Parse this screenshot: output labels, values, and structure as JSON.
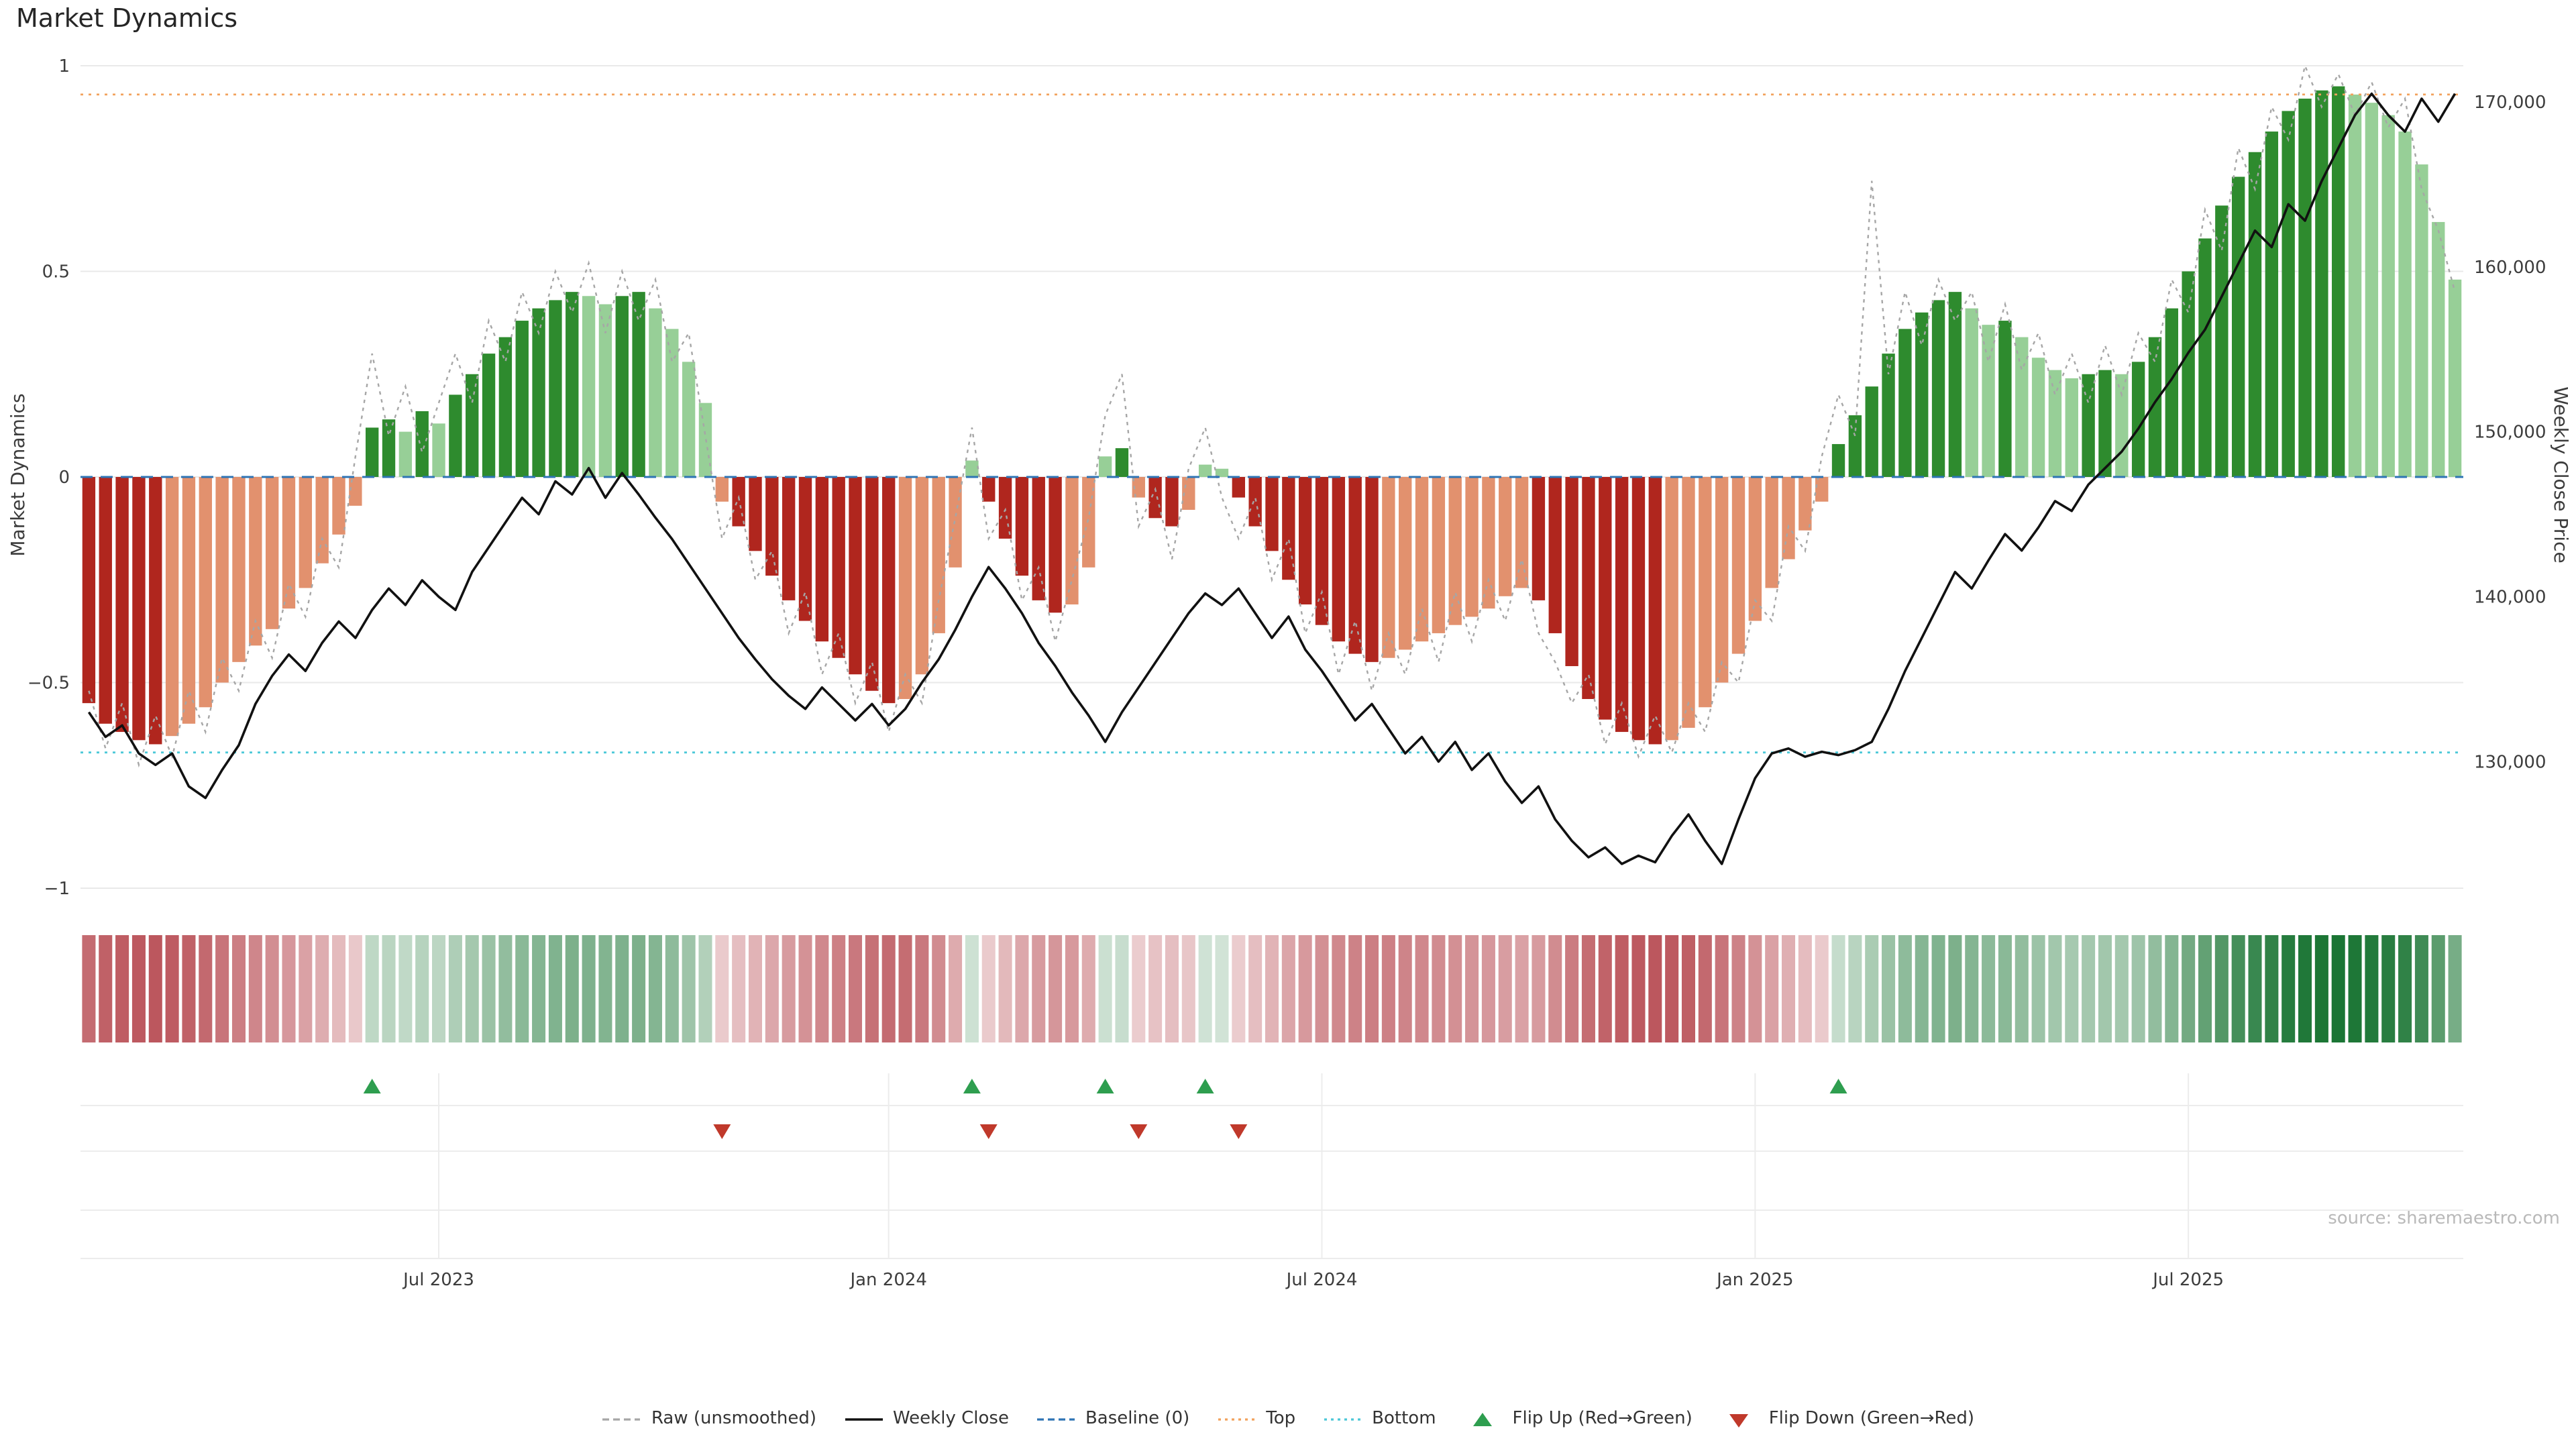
{
  "title": "Market Dynamics",
  "source": "source: sharemaestro.com",
  "axes": {
    "left_label": "Market Dynamics",
    "right_label": "Weekly Close Price",
    "left_ticks": [
      {
        "label": "1",
        "value": 1
      },
      {
        "label": "0.5",
        "value": 0.5
      },
      {
        "label": "0",
        "value": 0
      },
      {
        "label": "−0.5",
        "value": -0.5
      },
      {
        "label": "−1",
        "value": -1
      }
    ],
    "right_ticks": [
      {
        "label": "170,000",
        "value": 170000
      },
      {
        "label": "160,000",
        "value": 160000
      },
      {
        "label": "150,000",
        "value": 150000
      },
      {
        "label": "140,000",
        "value": 140000
      },
      {
        "label": "130,000",
        "value": 130000
      }
    ],
    "x_ticks": [
      {
        "label": "Jul 2023",
        "week": 21
      },
      {
        "label": "Jan 2024",
        "week": 48
      },
      {
        "label": "Jul 2024",
        "week": 74
      },
      {
        "label": "Jan 2025",
        "week": 100
      },
      {
        "label": "Jul 2025",
        "week": 126
      }
    ]
  },
  "legend": [
    {
      "label": "Raw (unsmoothed)",
      "type": "dashed-line",
      "color": "#a6a6a6"
    },
    {
      "label": "Weekly Close",
      "type": "solid-line",
      "color": "#111111"
    },
    {
      "label": "Baseline (0)",
      "type": "dashed-line",
      "color": "#2e74b5"
    },
    {
      "label": "Top",
      "type": "dotted-line",
      "color": "#f2a25c"
    },
    {
      "label": "Bottom",
      "type": "dotted-line",
      "color": "#4cc8d8"
    },
    {
      "label": "Flip Up (Red→Green)",
      "type": "triangle-up",
      "color": "#2e9e4f"
    },
    {
      "label": "Flip Down (Green→Red)",
      "type": "triangle-down",
      "color": "#c0392b"
    }
  ],
  "colors": {
    "bar_green_strong": "#2e8b2e",
    "bar_green_weak": "#97cf97",
    "bar_red_strong": "#b0261e",
    "bar_red_weak": "#e2916e",
    "raw_line": "#a6a6a6",
    "price_line": "#111111",
    "baseline": "#2e74b5",
    "top_line": "#f2a25c",
    "bottom_line": "#4cc8d8",
    "flip_up": "#2e9e4f",
    "flip_down": "#c0392b",
    "grid": "#e9e9e9",
    "panel_grid": "#ececec",
    "heat_green_base": "#177331",
    "heat_red_base": "#a41a23"
  },
  "chart_data": {
    "type": "bar",
    "description": "Weekly market-dynamics oscillator bars (left axis, -1..1) with raw unsmoothed dashed overlay and weekly close price line (right axis); heatmap intensity strip and flip-signal marker rows below.",
    "n_points": 143,
    "x_description": "143 weekly points spanning approx Feb 2023 to Oct 2025",
    "left_ylim": [
      -1.05,
      1.05
    ],
    "right_ylim": [
      122000,
      172000
    ],
    "grid": "horizontal only, light gray",
    "legend_position": "bottom center",
    "reference_lines": {
      "baseline": 0,
      "top": 0.93,
      "bottom": -0.67
    },
    "flip_up_indices": [
      17,
      53,
      61,
      67,
      105
    ],
    "flip_down_indices": [
      38,
      54,
      63,
      69
    ],
    "heatmap": {
      "derived_from": "oscillator values",
      "encoding": "green positive / red negative, color intensity proportional to |value|"
    },
    "series": [
      {
        "name": "Market Dynamics (smoothed bars)",
        "type": "bar",
        "axis": "left",
        "values": [
          -0.55,
          -0.6,
          -0.62,
          -0.64,
          -0.65,
          -0.63,
          -0.6,
          -0.56,
          -0.5,
          -0.45,
          -0.41,
          -0.37,
          -0.32,
          -0.27,
          -0.21,
          -0.14,
          -0.07,
          0.12,
          0.14,
          0.11,
          0.16,
          0.13,
          0.2,
          0.25,
          0.3,
          0.34,
          0.38,
          0.41,
          0.43,
          0.45,
          0.44,
          0.42,
          0.44,
          0.45,
          0.41,
          0.36,
          0.28,
          0.18,
          -0.06,
          -0.12,
          -0.18,
          -0.24,
          -0.3,
          -0.35,
          -0.4,
          -0.44,
          -0.48,
          -0.52,
          -0.55,
          -0.54,
          -0.48,
          -0.38,
          -0.22,
          0.04,
          -0.06,
          -0.15,
          -0.24,
          -0.3,
          -0.33,
          -0.31,
          -0.22,
          0.05,
          0.07,
          -0.05,
          -0.1,
          -0.12,
          -0.08,
          0.03,
          0.02,
          -0.05,
          -0.12,
          -0.18,
          -0.25,
          -0.31,
          -0.36,
          -0.4,
          -0.43,
          -0.45,
          -0.44,
          -0.42,
          -0.4,
          -0.38,
          -0.36,
          -0.34,
          -0.32,
          -0.29,
          -0.27,
          -0.3,
          -0.38,
          -0.46,
          -0.54,
          -0.59,
          -0.62,
          -0.64,
          -0.65,
          -0.64,
          -0.61,
          -0.56,
          -0.5,
          -0.43,
          -0.35,
          -0.27,
          -0.2,
          -0.13,
          -0.06,
          0.08,
          0.15,
          0.22,
          0.3,
          0.36,
          0.4,
          0.43,
          0.45,
          0.41,
          0.37,
          0.38,
          0.34,
          0.29,
          0.26,
          0.24,
          0.25,
          0.26,
          0.25,
          0.28,
          0.34,
          0.41,
          0.5,
          0.58,
          0.66,
          0.73,
          0.79,
          0.84,
          0.89,
          0.92,
          0.94,
          0.95,
          0.93,
          0.91,
          0.88,
          0.84,
          0.76,
          0.62,
          0.48
        ]
      },
      {
        "name": "Raw (unsmoothed)",
        "type": "line",
        "style": "dashed",
        "axis": "left",
        "values": [
          -0.52,
          -0.66,
          -0.55,
          -0.7,
          -0.58,
          -0.68,
          -0.52,
          -0.62,
          -0.44,
          -0.52,
          -0.35,
          -0.44,
          -0.26,
          -0.34,
          -0.15,
          -0.22,
          0.05,
          0.3,
          0.1,
          0.22,
          0.06,
          0.18,
          0.3,
          0.18,
          0.38,
          0.28,
          0.45,
          0.35,
          0.5,
          0.4,
          0.52,
          0.35,
          0.5,
          0.38,
          0.48,
          0.28,
          0.35,
          0.1,
          -0.15,
          -0.05,
          -0.25,
          -0.18,
          -0.38,
          -0.28,
          -0.48,
          -0.38,
          -0.55,
          -0.45,
          -0.62,
          -0.48,
          -0.55,
          -0.3,
          -0.1,
          0.12,
          -0.15,
          -0.08,
          -0.3,
          -0.22,
          -0.4,
          -0.25,
          -0.1,
          0.15,
          0.25,
          -0.12,
          -0.03,
          -0.2,
          0.02,
          0.12,
          -0.05,
          -0.15,
          -0.05,
          -0.25,
          -0.15,
          -0.38,
          -0.28,
          -0.48,
          -0.35,
          -0.52,
          -0.38,
          -0.48,
          -0.32,
          -0.45,
          -0.28,
          -0.4,
          -0.25,
          -0.35,
          -0.2,
          -0.38,
          -0.45,
          -0.55,
          -0.48,
          -0.65,
          -0.55,
          -0.68,
          -0.58,
          -0.67,
          -0.55,
          -0.62,
          -0.45,
          -0.5,
          -0.3,
          -0.35,
          -0.12,
          -0.18,
          0.05,
          0.2,
          0.1,
          0.72,
          0.25,
          0.45,
          0.32,
          0.48,
          0.38,
          0.45,
          0.28,
          0.42,
          0.26,
          0.35,
          0.2,
          0.3,
          0.18,
          0.32,
          0.2,
          0.35,
          0.28,
          0.48,
          0.4,
          0.65,
          0.55,
          0.8,
          0.7,
          0.9,
          0.82,
          1.0,
          0.9,
          0.98,
          0.88,
          0.96,
          0.85,
          0.92,
          0.7,
          0.6,
          0.45
        ]
      },
      {
        "name": "Weekly Close",
        "type": "line",
        "axis": "right",
        "values": [
          133000,
          131500,
          132200,
          130500,
          129800,
          130500,
          128500,
          127800,
          129500,
          131000,
          133500,
          135200,
          136500,
          135500,
          137200,
          138500,
          137500,
          139200,
          140500,
          139500,
          141000,
          140000,
          139200,
          141500,
          143000,
          144500,
          146000,
          145000,
          147000,
          146200,
          147800,
          146000,
          147500,
          146200,
          144800,
          143500,
          142000,
          140500,
          139000,
          137500,
          136200,
          135000,
          134000,
          133200,
          134500,
          133500,
          132500,
          133500,
          132200,
          133200,
          134800,
          136200,
          138000,
          140000,
          141800,
          140500,
          139000,
          137200,
          135800,
          134200,
          132800,
          131200,
          133000,
          134500,
          136000,
          137500,
          139000,
          140200,
          139500,
          140500,
          139000,
          137500,
          138800,
          136800,
          135500,
          134000,
          132500,
          133500,
          132000,
          130500,
          131500,
          130000,
          131200,
          129500,
          130500,
          128800,
          127500,
          128500,
          126500,
          125200,
          124200,
          124800,
          123800,
          124300,
          123900,
          125500,
          126800,
          125200,
          123800,
          126500,
          129000,
          130500,
          130800,
          130300,
          130600,
          130400,
          130700,
          131200,
          133200,
          135500,
          137500,
          139500,
          141500,
          140500,
          142200,
          143800,
          142800,
          144200,
          145800,
          145200,
          146800,
          147800,
          148800,
          150200,
          151800,
          153200,
          154800,
          156200,
          158200,
          160200,
          162200,
          161200,
          163800,
          162800,
          165200,
          167200,
          169200,
          170500,
          169200,
          168200,
          170200,
          168800,
          170500
        ]
      }
    ]
  }
}
